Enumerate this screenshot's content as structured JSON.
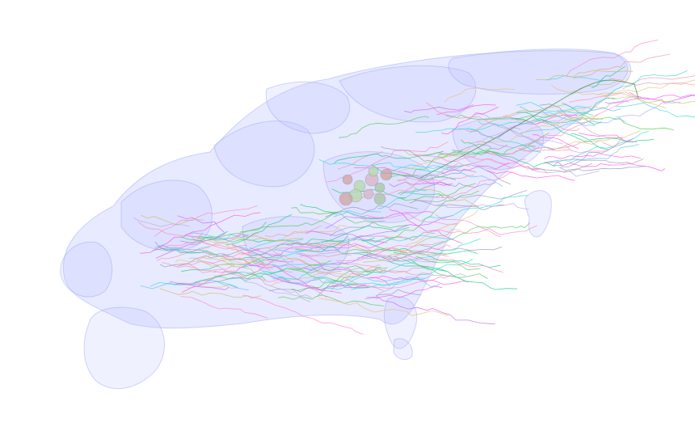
{
  "scene": {
    "background": "#ffffff",
    "mesh_fill": "#b9bfff",
    "mesh_stroke": "#9aa3f5",
    "neuron_colors": [
      "#ff55ee",
      "#33dddd",
      "#22cc88",
      "#c9c060",
      "#bbaadd",
      "#ee99aa",
      "#9999bb",
      "#e8c27a",
      "#55cc55",
      "#ff88cc",
      "#66bbff",
      "#cc66ff"
    ],
    "soma_colors": [
      "#cfa8a8",
      "#b8d8b0",
      "#d8b8c8",
      "#a8c8a8"
    ]
  }
}
